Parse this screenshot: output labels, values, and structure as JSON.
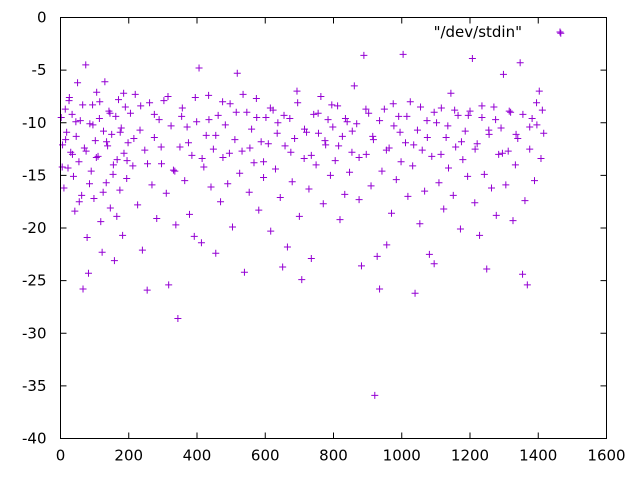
{
  "chart_data": {
    "type": "scatter",
    "title": "",
    "xlabel": "",
    "ylabel": "",
    "xlim": [
      0,
      1600
    ],
    "ylim": [
      -40,
      0
    ],
    "x_ticks": [
      0,
      200,
      400,
      600,
      800,
      1000,
      1200,
      1400,
      1600
    ],
    "y_ticks": [
      0,
      -5,
      -10,
      -15,
      -20,
      -25,
      -30,
      -35,
      -40
    ],
    "grid": false,
    "legend_position": "top-right",
    "marker": "plus",
    "series": [
      {
        "name": "\"/dev/stdin\"",
        "color": "#9400d3",
        "points": [
          [
            2,
            -9.5
          ],
          [
            6,
            -12.1
          ],
          [
            10,
            -16.2
          ],
          [
            14,
            -8.7
          ],
          [
            18,
            -10.9
          ],
          [
            22,
            -14.3
          ],
          [
            26,
            -7.6
          ],
          [
            30,
            -12.8
          ],
          [
            34,
            -9.2
          ],
          [
            38,
            -15.1
          ],
          [
            42,
            -18.4
          ],
          [
            46,
            -11.3
          ],
          [
            50,
            -6.2
          ],
          [
            54,
            -13.7
          ],
          [
            58,
            -9.8
          ],
          [
            62,
            -16.9
          ],
          [
            66,
            -25.8
          ],
          [
            70,
            -12.4
          ],
          [
            74,
            -4.5
          ],
          [
            78,
            -20.9
          ],
          [
            82,
            -24.3
          ],
          [
            86,
            -10.1
          ],
          [
            90,
            -14.6
          ],
          [
            94,
            -8.3
          ],
          [
            98,
            -17.2
          ],
          [
            102,
            -11.7
          ],
          [
            106,
            -7.1
          ],
          [
            110,
            -13.2
          ],
          [
            114,
            -9.6
          ],
          [
            118,
            -19.4
          ],
          [
            122,
            -22.3
          ],
          [
            126,
            -10.8
          ],
          [
            130,
            -6.1
          ],
          [
            134,
            -15.7
          ],
          [
            138,
            -12.2
          ],
          [
            142,
            -8.9
          ],
          [
            146,
            -18.1
          ],
          [
            150,
            -11.1
          ],
          [
            154,
            -14.9
          ],
          [
            158,
            -23.1
          ],
          [
            162,
            -9.4
          ],
          [
            166,
            -13.5
          ],
          [
            170,
            -7.8
          ],
          [
            174,
            -16.4
          ],
          [
            178,
            -10.5
          ],
          [
            182,
            -20.7
          ],
          [
            186,
            -12.9
          ],
          [
            190,
            -8.5
          ],
          [
            194,
            -15.3
          ],
          [
            198,
            -11.9
          ],
          [
            205,
            -9.1
          ],
          [
            212,
            -14.1
          ],
          [
            219,
            -7.3
          ],
          [
            226,
            -17.8
          ],
          [
            233,
            -10.7
          ],
          [
            240,
            -22.1
          ],
          [
            247,
            -12.6
          ],
          [
            254,
            -25.9
          ],
          [
            261,
            -8.1
          ],
          [
            268,
            -15.9
          ],
          [
            275,
            -11.4
          ],
          [
            282,
            -19.1
          ],
          [
            289,
            -9.7
          ],
          [
            296,
            -13.9
          ],
          [
            303,
            -7.9
          ],
          [
            310,
            -16.7
          ],
          [
            317,
            -25.4
          ],
          [
            324,
            -10.3
          ],
          [
            331,
            -14.5
          ],
          [
            338,
            -19.7
          ],
          [
            344,
            -28.6
          ],
          [
            350,
            -12.3
          ],
          [
            357,
            -8.6
          ],
          [
            364,
            -15.5
          ],
          [
            371,
            -10.4
          ],
          [
            378,
            -18.7
          ],
          [
            385,
            -13.1
          ],
          [
            392,
            -20.8
          ],
          [
            399,
            -9.9
          ],
          [
            406,
            -4.8
          ],
          [
            413,
            -21.4
          ],
          [
            420,
            -14.2
          ],
          [
            427,
            -11.2
          ],
          [
            434,
            -7.4
          ],
          [
            441,
            -16.1
          ],
          [
            448,
            -12.5
          ],
          [
            455,
            -22.4
          ],
          [
            462,
            -9.3
          ],
          [
            469,
            -17.5
          ],
          [
            476,
            -13.3
          ],
          [
            483,
            -10.2
          ],
          [
            490,
            -15.8
          ],
          [
            497,
            -8.2
          ],
          [
            504,
            -19.9
          ],
          [
            511,
            -11.6
          ],
          [
            518,
            -5.3
          ],
          [
            525,
            -14.8
          ],
          [
            532,
            -12.7
          ],
          [
            539,
            -24.2
          ],
          [
            546,
            -9.0
          ],
          [
            553,
            -16.6
          ],
          [
            560,
            -10.6
          ],
          [
            567,
            -13.8
          ],
          [
            574,
            -7.7
          ],
          [
            581,
            -18.3
          ],
          [
            588,
            -11.8
          ],
          [
            595,
            -15.2
          ],
          [
            602,
            -9.5
          ],
          [
            609,
            -12.0
          ],
          [
            616,
            -20.3
          ],
          [
            623,
            -8.8
          ],
          [
            630,
            -14.4
          ],
          [
            637,
            -10.0
          ],
          [
            644,
            -17.1
          ],
          [
            651,
            -23.7
          ],
          [
            658,
            -12.2
          ],
          [
            665,
            -21.8
          ],
          [
            672,
            -9.6
          ],
          [
            679,
            -15.6
          ],
          [
            686,
            -11.5
          ],
          [
            693,
            -7.0
          ],
          [
            700,
            -18.9
          ],
          [
            707,
            -24.9
          ],
          [
            714,
            -13.4
          ],
          [
            721,
            -10.9
          ],
          [
            728,
            -16.3
          ],
          [
            735,
            -22.9
          ],
          [
            742,
            -9.2
          ],
          [
            749,
            -14.0
          ],
          [
            756,
            -11.0
          ],
          [
            763,
            -7.5
          ],
          [
            770,
            -17.7
          ],
          [
            777,
            -12.1
          ],
          [
            784,
            -9.7
          ],
          [
            791,
            -15.0
          ],
          [
            798,
            -10.4
          ],
          [
            805,
            -13.6
          ],
          [
            812,
            -8.4
          ],
          [
            819,
            -19.2
          ],
          [
            826,
            -11.3
          ],
          [
            833,
            -16.8
          ],
          [
            840,
            -9.9
          ],
          [
            847,
            -14.7
          ],
          [
            854,
            -12.8
          ],
          [
            861,
            -6.5
          ],
          [
            868,
            -10.1
          ],
          [
            875,
            -17.3
          ],
          [
            882,
            -23.6
          ],
          [
            889,
            -3.6
          ],
          [
            896,
            -13.0
          ],
          [
            903,
            -9.1
          ],
          [
            910,
            -16.0
          ],
          [
            917,
            -11.6
          ],
          [
            921,
            -35.9
          ],
          [
            928,
            -22.7
          ],
          [
            935,
            -25.8
          ],
          [
            942,
            -14.6
          ],
          [
            949,
            -8.7
          ],
          [
            956,
            -21.6
          ],
          [
            963,
            -12.4
          ],
          [
            970,
            -18.6
          ],
          [
            977,
            -10.3
          ],
          [
            984,
            -15.4
          ],
          [
            991,
            -9.4
          ],
          [
            998,
            -13.7
          ],
          [
            1004,
            -3.5
          ],
          [
            1011,
            -11.9
          ],
          [
            1018,
            -17.0
          ],
          [
            1025,
            -8.0
          ],
          [
            1032,
            -14.1
          ],
          [
            1039,
            -26.2
          ],
          [
            1046,
            -10.7
          ],
          [
            1053,
            -19.6
          ],
          [
            1060,
            -12.6
          ],
          [
            1067,
            -16.5
          ],
          [
            1074,
            -9.8
          ],
          [
            1081,
            -22.5
          ],
          [
            1088,
            -13.2
          ],
          [
            1095,
            -23.4
          ],
          [
            1102,
            -10.0
          ],
          [
            1109,
            -15.7
          ],
          [
            1116,
            -8.6
          ],
          [
            1123,
            -18.2
          ],
          [
            1130,
            -11.4
          ],
          [
            1137,
            -14.3
          ],
          [
            1144,
            -7.2
          ],
          [
            1151,
            -16.9
          ],
          [
            1158,
            -12.3
          ],
          [
            1165,
            -9.3
          ],
          [
            1172,
            -20.1
          ],
          [
            1179,
            -13.5
          ],
          [
            1186,
            -10.8
          ],
          [
            1193,
            -15.1
          ],
          [
            1200,
            -8.9
          ],
          [
            1207,
            -3.9
          ],
          [
            1214,
            -17.6
          ],
          [
            1221,
            -12.0
          ],
          [
            1228,
            -20.7
          ],
          [
            1235,
            -9.5
          ],
          [
            1242,
            -14.9
          ],
          [
            1249,
            -23.9
          ],
          [
            1256,
            -11.1
          ],
          [
            1263,
            -16.2
          ],
          [
            1270,
            -8.5
          ],
          [
            1277,
            -18.8
          ],
          [
            1284,
            -13.0
          ],
          [
            1291,
            -10.5
          ],
          [
            1298,
            -5.4
          ],
          [
            1305,
            -15.9
          ],
          [
            1312,
            -12.7
          ],
          [
            1319,
            -9.0
          ],
          [
            1326,
            -19.3
          ],
          [
            1333,
            -14.0
          ],
          [
            1340,
            -11.5
          ],
          [
            1347,
            -4.3
          ],
          [
            1354,
            -24.4
          ],
          [
            1361,
            -17.4
          ],
          [
            1368,
            -25.4
          ],
          [
            1375,
            -12.5
          ],
          [
            1382,
            -9.6
          ],
          [
            1389,
            -15.5
          ],
          [
            1396,
            -10.2
          ],
          [
            1403,
            -7.0
          ],
          [
            1408,
            -13.4
          ],
          [
            1412,
            -8.8
          ],
          [
            1416,
            -11.0
          ],
          [
            5,
            -14.2
          ],
          [
            15,
            -11.6
          ],
          [
            25,
            -7.9
          ],
          [
            35,
            -13.0
          ],
          [
            45,
            -9.9
          ],
          [
            55,
            -17.5
          ],
          [
            65,
            -8.3
          ],
          [
            75,
            -12.7
          ],
          [
            85,
            -15.8
          ],
          [
            95,
            -10.2
          ],
          [
            105,
            -13.3
          ],
          [
            115,
            -8.0
          ],
          [
            125,
            -16.6
          ],
          [
            135,
            -11.8
          ],
          [
            145,
            -9.1
          ],
          [
            155,
            -14.0
          ],
          [
            165,
            -18.9
          ],
          [
            175,
            -10.9
          ],
          [
            185,
            -7.2
          ],
          [
            195,
            -13.6
          ],
          [
            215,
            -11.5
          ],
          [
            235,
            -8.4
          ],
          [
            255,
            -13.9
          ],
          [
            275,
            -9.2
          ],
          [
            295,
            -12.3
          ],
          [
            315,
            -7.5
          ],
          [
            335,
            -14.6
          ],
          [
            355,
            -9.4
          ],
          [
            375,
            -11.9
          ],
          [
            395,
            -7.6
          ],
          [
            415,
            -13.4
          ],
          [
            435,
            -9.7
          ],
          [
            455,
            -11.2
          ],
          [
            475,
            -8.0
          ],
          [
            495,
            -12.9
          ],
          [
            515,
            -9.0
          ],
          [
            535,
            -7.3
          ],
          [
            555,
            -12.4
          ],
          [
            575,
            -9.5
          ],
          [
            595,
            -13.7
          ],
          [
            615,
            -8.6
          ],
          [
            635,
            -11.0
          ],
          [
            655,
            -9.3
          ],
          [
            675,
            -12.8
          ],
          [
            695,
            -8.1
          ],
          [
            715,
            -10.6
          ],
          [
            735,
            -13.1
          ],
          [
            755,
            -9.1
          ],
          [
            775,
            -11.7
          ],
          [
            795,
            -8.3
          ],
          [
            815,
            -12.2
          ],
          [
            835,
            -9.6
          ],
          [
            855,
            -10.8
          ],
          [
            875,
            -13.3
          ],
          [
            895,
            -8.7
          ],
          [
            915,
            -11.3
          ],
          [
            935,
            -9.8
          ],
          [
            955,
            -12.6
          ],
          [
            975,
            -8.2
          ],
          [
            995,
            -10.9
          ],
          [
            1015,
            -9.4
          ],
          [
            1035,
            -12.1
          ],
          [
            1055,
            -8.5
          ],
          [
            1075,
            -11.4
          ],
          [
            1095,
            -9.0
          ],
          [
            1115,
            -13.0
          ],
          [
            1135,
            -10.3
          ],
          [
            1155,
            -8.8
          ],
          [
            1175,
            -11.8
          ],
          [
            1195,
            -9.3
          ],
          [
            1215,
            -12.5
          ],
          [
            1235,
            -8.4
          ],
          [
            1255,
            -10.7
          ],
          [
            1275,
            -9.7
          ],
          [
            1295,
            -12.9
          ],
          [
            1315,
            -8.9
          ],
          [
            1335,
            -11.1
          ],
          [
            1355,
            -9.2
          ],
          [
            1375,
            -10.4
          ],
          [
            1395,
            -8.1
          ],
          [
            1466,
            -1.5
          ]
        ]
      }
    ]
  }
}
